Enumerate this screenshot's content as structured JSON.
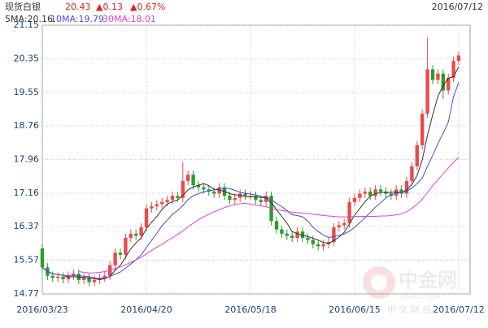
{
  "chart_data": {
    "type": "candlestick",
    "title": "现货白银",
    "price": "20.43",
    "change": "▲0.13",
    "change_pct": "▲0.67%",
    "date": "2016/07/12",
    "up_color": "#e94b4b",
    "down_color": "#2d9b2d",
    "grid": true,
    "watermark": {
      "name": "中金网",
      "site": "CNGOLD.COM",
      "tagline": "中 文 财 经"
    },
    "ylim": [
      14.77,
      21.15
    ],
    "yticks": [
      14.77,
      15.57,
      16.37,
      17.16,
      17.96,
      18.76,
      19.55,
      20.35,
      21.15
    ],
    "categories": [
      "2016/03/23",
      null,
      null,
      null,
      null,
      null,
      null,
      null,
      null,
      null,
      null,
      null,
      null,
      null,
      null,
      null,
      null,
      null,
      null,
      null,
      "2016/04/20",
      null,
      null,
      null,
      null,
      null,
      null,
      null,
      null,
      null,
      null,
      null,
      null,
      null,
      null,
      null,
      null,
      null,
      null,
      null,
      "2016/05/18",
      null,
      null,
      null,
      null,
      null,
      null,
      null,
      null,
      null,
      null,
      null,
      null,
      null,
      null,
      null,
      null,
      null,
      null,
      null,
      "2016/06/15",
      null,
      null,
      null,
      null,
      null,
      null,
      null,
      null,
      null,
      null,
      null,
      null,
      null,
      null,
      null,
      null,
      null,
      null,
      null,
      "2016/07/12"
    ],
    "open": [
      15.85,
      15.4,
      15.2,
      15.15,
      15.18,
      15.12,
      15.2,
      15.25,
      15.1,
      15.15,
      15.05,
      15.1,
      15.15,
      15.2,
      15.45,
      15.75,
      15.7,
      16.1,
      16.2,
      16.15,
      16.35,
      16.8,
      16.85,
      16.9,
      16.95,
      17.0,
      17.1,
      17.05,
      17.45,
      17.6,
      17.35,
      17.3,
      17.25,
      17.2,
      17.15,
      17.3,
      17.1,
      17.0,
      17.05,
      17.15,
      17.1,
      17.1,
      17.0,
      16.95,
      17.1,
      16.5,
      16.3,
      16.2,
      16.15,
      16.1,
      16.25,
      16.1,
      16.05,
      15.95,
      15.9,
      15.95,
      16.0,
      16.35,
      16.4,
      16.45,
      16.95,
      17.05,
      17.15,
      17.2,
      17.1,
      17.25,
      17.2,
      17.15,
      17.1,
      17.25,
      17.15,
      17.45,
      17.8,
      18.3,
      19.05,
      20.1,
      19.85,
      20.0,
      19.6,
      19.9,
      20.3
    ],
    "high": [
      15.95,
      15.5,
      15.3,
      15.28,
      15.28,
      15.3,
      15.35,
      15.35,
      15.25,
      15.25,
      15.2,
      15.25,
      15.3,
      15.55,
      15.85,
      15.85,
      16.2,
      16.3,
      16.3,
      16.45,
      16.9,
      16.95,
      17.0,
      17.05,
      17.1,
      17.2,
      17.2,
      17.9,
      17.7,
      17.7,
      17.45,
      17.4,
      17.35,
      17.3,
      17.4,
      17.4,
      17.2,
      17.15,
      17.25,
      17.25,
      17.2,
      17.2,
      17.1,
      17.2,
      17.2,
      16.6,
      16.4,
      16.3,
      16.25,
      16.35,
      16.35,
      16.2,
      16.15,
      16.05,
      16.05,
      16.1,
      16.45,
      16.5,
      16.55,
      17.05,
      17.15,
      17.25,
      17.3,
      17.3,
      17.35,
      17.35,
      17.3,
      17.25,
      17.35,
      17.35,
      17.55,
      17.9,
      18.4,
      19.15,
      20.85,
      20.2,
      20.1,
      20.1,
      20.0,
      20.4,
      20.53
    ],
    "low": [
      15.3,
      15.1,
      15.05,
      15.05,
      15.02,
      15.02,
      15.1,
      15.0,
      15.0,
      14.95,
      14.95,
      15.0,
      15.05,
      15.1,
      15.35,
      15.6,
      15.6,
      16.0,
      16.05,
      16.05,
      16.25,
      16.7,
      16.75,
      16.8,
      16.85,
      16.9,
      16.95,
      16.95,
      17.35,
      17.25,
      17.2,
      17.15,
      17.1,
      17.05,
      17.05,
      17.0,
      16.9,
      16.9,
      16.95,
      17.0,
      17.0,
      16.9,
      16.85,
      16.85,
      16.4,
      16.2,
      16.1,
      16.05,
      16.0,
      16.0,
      16.0,
      15.95,
      15.85,
      15.8,
      15.8,
      15.85,
      15.9,
      16.25,
      16.3,
      16.35,
      16.85,
      16.95,
      17.05,
      17.0,
      17.0,
      17.1,
      17.05,
      17.0,
      17.0,
      17.05,
      17.05,
      17.35,
      17.7,
      18.2,
      18.95,
      19.75,
      19.75,
      19.4,
      19.5,
      19.8,
      20.2
    ],
    "close": [
      15.4,
      15.2,
      15.15,
      15.18,
      15.12,
      15.2,
      15.25,
      15.1,
      15.15,
      15.05,
      15.1,
      15.15,
      15.2,
      15.45,
      15.75,
      15.7,
      16.1,
      16.2,
      16.15,
      16.35,
      16.8,
      16.85,
      16.9,
      16.95,
      17.0,
      17.1,
      17.05,
      17.45,
      17.6,
      17.35,
      17.3,
      17.25,
      17.2,
      17.15,
      17.3,
      17.1,
      17.0,
      17.05,
      17.15,
      17.1,
      17.1,
      17.0,
      16.95,
      17.1,
      16.5,
      16.3,
      16.2,
      16.15,
      16.1,
      16.25,
      16.1,
      16.05,
      15.95,
      15.9,
      15.95,
      16.0,
      16.35,
      16.4,
      16.45,
      16.95,
      17.05,
      17.15,
      17.2,
      17.1,
      17.25,
      17.2,
      17.15,
      17.1,
      17.25,
      17.15,
      17.45,
      17.8,
      18.3,
      19.05,
      20.1,
      19.85,
      20.0,
      19.6,
      19.9,
      20.3,
      20.43
    ],
    "series": [
      {
        "name": "5MA:20.16",
        "color": "#333333",
        "values": [
          15.4,
          15.3,
          15.25,
          15.23,
          15.21,
          15.17,
          15.18,
          15.17,
          15.16,
          15.15,
          15.13,
          15.11,
          15.13,
          15.19,
          15.33,
          15.45,
          15.64,
          15.84,
          15.98,
          16.1,
          16.32,
          16.47,
          16.61,
          16.77,
          16.9,
          16.96,
          17.0,
          17.11,
          17.24,
          17.31,
          17.35,
          17.39,
          17.34,
          17.25,
          17.24,
          17.2,
          17.15,
          17.12,
          17.12,
          17.08,
          17.08,
          17.08,
          17.06,
          17.05,
          16.93,
          16.77,
          16.61,
          16.45,
          16.25,
          16.2,
          16.16,
          16.13,
          16.09,
          16.05,
          15.99,
          15.97,
          16.03,
          16.12,
          16.23,
          16.43,
          16.64,
          16.8,
          16.96,
          17.09,
          17.15,
          17.18,
          17.18,
          17.18,
          17.19,
          17.17,
          17.24,
          17.37,
          17.58,
          17.95,
          18.54,
          19.02,
          19.46,
          19.72,
          19.89,
          19.93,
          20.16
        ]
      },
      {
        "name": "10MA:19.79",
        "color": "#4a4adf",
        "values": [
          15.4,
          15.3,
          15.25,
          15.23,
          15.21,
          15.21,
          15.21,
          15.2,
          15.19,
          15.18,
          15.15,
          15.14,
          15.15,
          15.18,
          15.24,
          15.29,
          15.38,
          15.48,
          15.58,
          15.7,
          15.87,
          16.04,
          16.21,
          16.39,
          16.52,
          16.66,
          16.75,
          16.87,
          17.01,
          17.1,
          17.15,
          17.19,
          17.22,
          17.24,
          17.27,
          17.28,
          17.27,
          17.23,
          17.18,
          17.16,
          17.14,
          17.12,
          17.09,
          17.07,
          17.0,
          16.92,
          16.84,
          16.75,
          16.65,
          16.63,
          16.6,
          16.5,
          16.35,
          16.25,
          16.17,
          16.11,
          16.13,
          16.16,
          16.19,
          16.26,
          16.35,
          16.46,
          16.58,
          16.7,
          16.83,
          16.93,
          17.05,
          17.12,
          17.17,
          17.17,
          17.21,
          17.28,
          17.39,
          17.52,
          17.8,
          18.06,
          18.34,
          18.58,
          18.85,
          19.45,
          19.79
        ]
      },
      {
        "name": "30MA:18.01",
        "color": "#e040e0",
        "values": [
          null,
          null,
          null,
          null,
          null,
          null,
          null,
          15.3,
          15.28,
          15.27,
          15.27,
          15.28,
          15.3,
          15.33,
          15.37,
          15.41,
          15.46,
          15.52,
          15.58,
          15.64,
          15.72,
          15.8,
          15.88,
          15.95,
          16.03,
          16.1,
          16.18,
          16.27,
          16.36,
          16.45,
          16.53,
          16.6,
          16.66,
          16.72,
          16.77,
          16.82,
          16.86,
          16.89,
          16.91,
          16.92,
          16.9,
          16.88,
          16.86,
          16.84,
          16.8,
          16.77,
          16.75,
          16.73,
          16.71,
          16.7,
          16.69,
          16.68,
          16.66,
          16.65,
          16.63,
          16.62,
          16.61,
          16.6,
          16.6,
          16.6,
          16.61,
          16.61,
          16.61,
          16.61,
          16.61,
          16.62,
          16.62,
          16.63,
          16.65,
          16.67,
          16.72,
          16.8,
          16.9,
          17.02,
          17.18,
          17.34,
          17.48,
          17.62,
          17.76,
          17.89,
          18.01
        ]
      }
    ]
  }
}
